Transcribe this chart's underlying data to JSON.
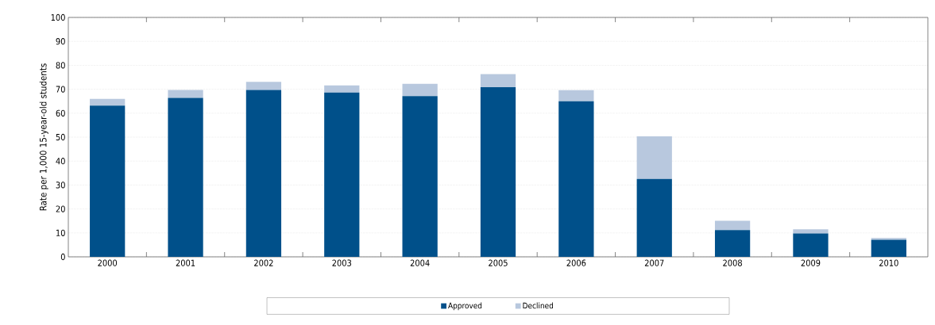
{
  "chart_data": {
    "type": "bar",
    "stacked": true,
    "ylabel": "Rate per 1,000 15-year-old students",
    "categories": [
      "2000",
      "2001",
      "2002",
      "2003",
      "2004",
      "2005",
      "2006",
      "2007",
      "2008",
      "2009",
      "2010"
    ],
    "series": [
      {
        "name": "Approved",
        "color": "#00508a",
        "values": [
          63.2,
          66.4,
          69.7,
          68.6,
          67.1,
          70.9,
          65.0,
          32.5,
          11.2,
          9.8,
          7.1
        ]
      },
      {
        "name": "Declined",
        "color": "#b8c8de",
        "values": [
          2.8,
          3.3,
          3.4,
          3.0,
          5.2,
          5.4,
          4.6,
          17.8,
          3.9,
          1.7,
          0.8
        ]
      }
    ],
    "ylim": [
      0,
      100
    ],
    "yticks": [
      0,
      10,
      20,
      30,
      40,
      50,
      60,
      70,
      80,
      90,
      100
    ],
    "grid": "y",
    "legend": "bottom"
  }
}
